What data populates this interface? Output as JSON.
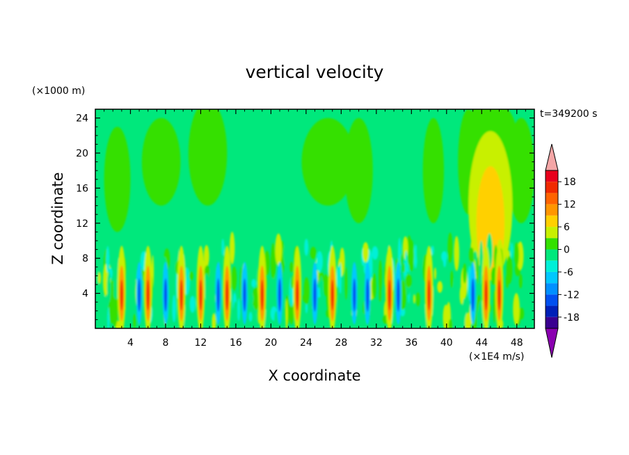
{
  "chart_data": {
    "type": "heatmap",
    "title": "vertical velocity",
    "xlabel": "X coordinate",
    "ylabel": "Z coordinate",
    "y_unit_label": "(×1000 m)",
    "cbar_unit_label": "(×1E4 m/s)",
    "time_label": "t=349200 s",
    "xlim": [
      0,
      50
    ],
    "ylim": [
      0,
      25
    ],
    "x_ticks": [
      "4",
      "8",
      "12",
      "16",
      "20",
      "24",
      "28",
      "32",
      "36",
      "40",
      "44",
      "48"
    ],
    "y_ticks": [
      "4",
      "8",
      "12",
      "16",
      "20",
      "24"
    ],
    "colorbar": {
      "range": [
        -21,
        21
      ],
      "labels": [
        "18",
        "12",
        "6",
        "0",
        "-6",
        "-12",
        "-18"
      ],
      "label_values": [
        18,
        12,
        6,
        0,
        -6,
        -12,
        -18
      ],
      "levels": [
        {
          "value": 19.5,
          "color": "#e8001c"
        },
        {
          "value": 16.5,
          "color": "#f02a00"
        },
        {
          "value": 13.5,
          "color": "#ff6400"
        },
        {
          "value": 10.5,
          "color": "#ff9600"
        },
        {
          "value": 7.5,
          "color": "#ffd000"
        },
        {
          "value": 4.5,
          "color": "#c8f000"
        },
        {
          "value": 1.5,
          "color": "#34e000"
        },
        {
          "value": -1.5,
          "color": "#00e87c"
        },
        {
          "value": -4.5,
          "color": "#00f0d8"
        },
        {
          "value": -7.5,
          "color": "#00c8ff"
        },
        {
          "value": -10.5,
          "color": "#0090ff"
        },
        {
          "value": -13.5,
          "color": "#0050f0"
        },
        {
          "value": -16.5,
          "color": "#0020b8"
        },
        {
          "value": -19.5,
          "color": "#3a0090"
        }
      ],
      "over_color": "#f4a6a6",
      "under_color": "#8a00b0"
    },
    "strong_updrafts_x": [
      3,
      6,
      9.8,
      12,
      15,
      19,
      23,
      27,
      33.5,
      38,
      44.5,
      46
    ],
    "strong_downdrafts_x": [
      5,
      8,
      14,
      17,
      21,
      25,
      29.5,
      31,
      34.5,
      43
    ]
  }
}
